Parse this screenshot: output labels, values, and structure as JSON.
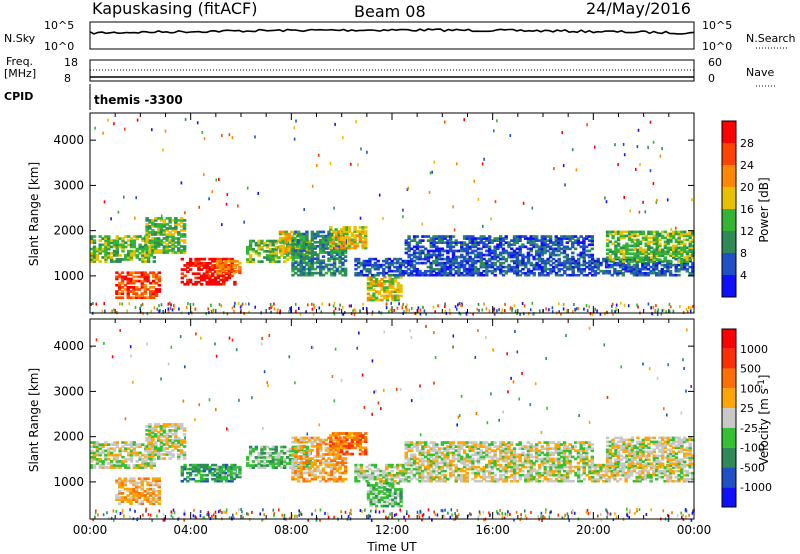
{
  "header": {
    "station": "Kapuskasing (fitACF)",
    "beam": "Beam 08",
    "date": "24/May/2016"
  },
  "top_panels": {
    "nsky_label": "N.Sky",
    "nsearch_label": "N.Search",
    "nsky_ticks": [
      "10^5",
      "10^0"
    ],
    "nsearch_ticks": [
      "10^5",
      "10^0"
    ],
    "freq_label_1": "Freq.",
    "freq_label_2": "[MHz]",
    "freq_ticks": [
      "18",
      "8"
    ],
    "nave_label": "Nave",
    "nave_ticks": [
      "60",
      "0"
    ],
    "cpid_label": "CPID",
    "cpid_value": "themis -3300"
  },
  "chart_data": [
    {
      "type": "heatmap",
      "name_panel": "power",
      "ylabel": "Slant Range [km]",
      "xlabel": "",
      "xlim": [
        "00:00",
        "24:00"
      ],
      "ylim": [
        180,
        4600
      ],
      "x_ticks": [
        "00:00",
        "04:00",
        "08:00",
        "12:00",
        "16:00",
        "20:00",
        "00:00"
      ],
      "y_ticks": [
        1000,
        2000,
        3000,
        4000
      ],
      "colorbar": {
        "label": "Power [dB]",
        "ticks": [
          "4",
          "8",
          "12",
          "16",
          "20",
          "24",
          "28"
        ],
        "colors": [
          "#1010ff",
          "#2050c8",
          "#2e8b57",
          "#33b533",
          "#e8c000",
          "#ff8800",
          "#ff4400",
          "#ff0000"
        ]
      },
      "regions": [
        {
          "t0": 0.0,
          "t1": 2.6,
          "r0": 1300,
          "r1": 1900,
          "level": 3
        },
        {
          "t0": 1.0,
          "t1": 2.8,
          "r0": 500,
          "r1": 1100,
          "level": 6
        },
        {
          "t0": 2.2,
          "t1": 3.8,
          "r0": 1500,
          "r1": 2300,
          "level": 3
        },
        {
          "t0": 3.6,
          "t1": 5.8,
          "r0": 800,
          "r1": 1400,
          "level": 7
        },
        {
          "t0": 5.0,
          "t1": 6.0,
          "r0": 1050,
          "r1": 1350,
          "level": 5
        },
        {
          "t0": 6.2,
          "t1": 8.8,
          "r0": 1300,
          "r1": 1800,
          "level": 3
        },
        {
          "t0": 7.5,
          "t1": 8.3,
          "r0": 1500,
          "r1": 2000,
          "level": 4
        },
        {
          "t0": 8.0,
          "t1": 10.2,
          "r0": 1000,
          "r1": 2000,
          "level": 2
        },
        {
          "t0": 9.5,
          "t1": 11.0,
          "r0": 1600,
          "r1": 2100,
          "level": 4
        },
        {
          "t0": 11.0,
          "t1": 12.4,
          "r0": 450,
          "r1": 1000,
          "level": 4
        },
        {
          "t0": 10.5,
          "t1": 24.0,
          "r0": 1000,
          "r1": 1400,
          "level": 1
        },
        {
          "t0": 12.5,
          "t1": 20.0,
          "r0": 1400,
          "r1": 1900,
          "level": 1
        },
        {
          "t0": 20.5,
          "t1": 24.0,
          "r0": 1300,
          "r1": 2000,
          "level": 3
        }
      ]
    },
    {
      "type": "heatmap",
      "name_panel": "velocity",
      "ylabel": "Slant Range [km]",
      "xlabel": "Time UT",
      "xlim": [
        "00:00",
        "24:00"
      ],
      "ylim": [
        180,
        4600
      ],
      "x_ticks": [
        "00:00",
        "04:00",
        "08:00",
        "12:00",
        "16:00",
        "20:00",
        "00:00"
      ],
      "y_ticks": [
        1000,
        2000,
        3000,
        4000
      ],
      "colorbar": {
        "label": "Velocity [m s^-1]",
        "ticks": [
          "1000",
          "500",
          "100",
          "25",
          "-25",
          "-100",
          "-500",
          "-1000"
        ],
        "colors": [
          "#1010ff",
          "#2050c8",
          "#2e8b57",
          "#33c033",
          "#c8c8c8",
          "#ffa500",
          "#ff7000",
          "#ff3000",
          "#ff0000"
        ]
      },
      "regions": [
        {
          "t0": 0.0,
          "t1": 2.6,
          "r0": 1300,
          "r1": 1900,
          "level": 4
        },
        {
          "t0": 1.0,
          "t1": 2.8,
          "r0": 500,
          "r1": 1100,
          "level": 5
        },
        {
          "t0": 2.2,
          "t1": 3.8,
          "r0": 1500,
          "r1": 2300,
          "level": 4
        },
        {
          "t0": 3.6,
          "t1": 5.8,
          "r0": 1000,
          "r1": 1400,
          "level": 2
        },
        {
          "t0": 5.0,
          "t1": 6.0,
          "r0": 1050,
          "r1": 1350,
          "level": 3
        },
        {
          "t0": 6.2,
          "t1": 8.8,
          "r0": 1300,
          "r1": 1800,
          "level": 3
        },
        {
          "t0": 8.0,
          "t1": 10.2,
          "r0": 1000,
          "r1": 2000,
          "level": 5
        },
        {
          "t0": 9.5,
          "t1": 11.0,
          "r0": 1600,
          "r1": 2100,
          "level": 6
        },
        {
          "t0": 11.0,
          "t1": 12.4,
          "r0": 450,
          "r1": 1000,
          "level": 3
        },
        {
          "t0": 10.5,
          "t1": 24.0,
          "r0": 1000,
          "r1": 1400,
          "level": 4
        },
        {
          "t0": 12.5,
          "t1": 20.0,
          "r0": 1400,
          "r1": 1900,
          "level": 4
        },
        {
          "t0": 20.5,
          "t1": 24.0,
          "r0": 1300,
          "r1": 2000,
          "level": 4
        }
      ]
    }
  ]
}
